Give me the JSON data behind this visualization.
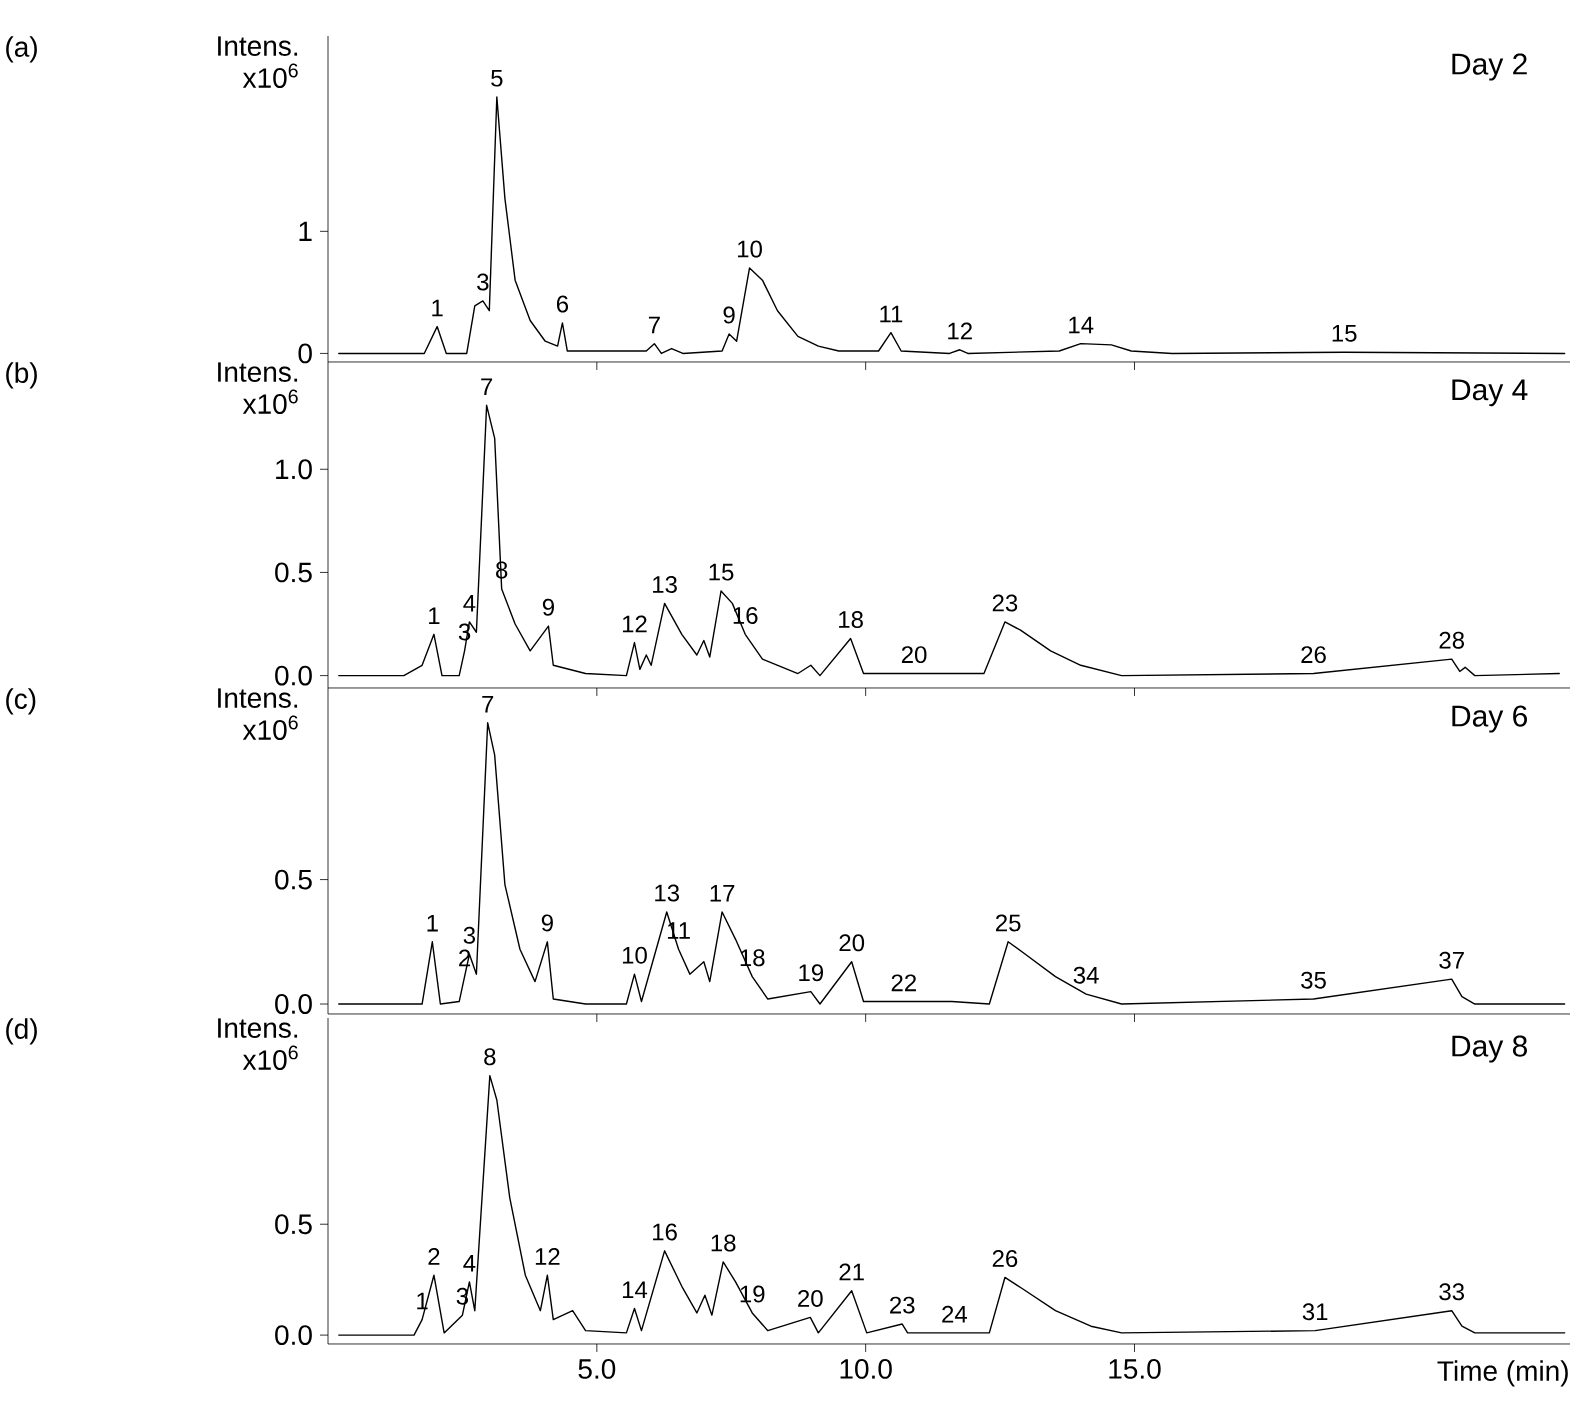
{
  "chart_data": [
    {
      "type": "line",
      "title": "Day 2",
      "ylabel": "Intens. x10$^{6}$",
      "xlim": [
        0,
        23.1
      ],
      "ylim": [
        -0.07,
        2.6
      ],
      "tick_labels": "y",
      "xticks": [
        {
          "value": 5,
          "label": null
        },
        {
          "value": 10,
          "label": null
        },
        {
          "value": 15,
          "label": null
        }
      ],
      "yticks": [
        0,
        1
      ],
      "x": [
        0.2,
        1.79,
        2.03,
        2.2,
        2.58,
        2.73,
        2.88,
        3.0,
        3.14,
        3.29,
        3.48,
        3.76,
        4.04,
        4.27,
        4.36,
        4.45,
        5.92,
        6.07,
        6.2,
        6.39,
        6.6,
        7.33,
        7.46,
        7.6,
        7.84,
        8.08,
        8.36,
        8.74,
        9.12,
        9.5,
        10.24,
        10.47,
        10.66,
        11.56,
        11.75,
        11.9,
        13.6,
        14.0,
        14.57,
        14.94,
        15.7,
        18.9,
        23.0
      ],
      "series": [
        {
          "color": "#000000",
          "values": [
            0,
            0,
            0.22,
            0,
            0,
            0.39,
            0.43,
            0.35,
            2.1,
            1.27,
            0.6,
            0.27,
            0.1,
            0.06,
            0.25,
            0.02,
            0.02,
            0.08,
            0,
            0.04,
            0,
            0.02,
            0.16,
            0.1,
            0.7,
            0.6,
            0.35,
            0.14,
            0.06,
            0.02,
            0.02,
            0.17,
            0.02,
            0,
            0.03,
            0,
            0.02,
            0.08,
            0.07,
            0.02,
            0,
            0.01,
            0
          ]
        }
      ],
      "annotations": [
        "(a)",
        {
          "text": "1",
          "x": 2.03,
          "y": 0.22
        },
        {
          "text": "3",
          "x": 2.88,
          "y": 0.43
        },
        {
          "text": "5",
          "x": 3.14,
          "y": 2.1
        },
        {
          "text": "6",
          "x": 4.36,
          "y": 0.25
        },
        {
          "text": "7",
          "x": 6.07,
          "y": 0.08
        },
        {
          "text": "9",
          "x": 7.46,
          "y": 0.16
        },
        {
          "text": "10",
          "x": 7.84,
          "y": 0.7
        },
        {
          "text": "11",
          "x": 10.47,
          "y": 0.17
        },
        {
          "text": "12",
          "x": 11.75,
          "y": 0.03
        },
        {
          "text": "14",
          "x": 14.0,
          "y": 0.08
        },
        {
          "text": "15",
          "x": 18.9,
          "y": 0.01
        }
      ]
    },
    {
      "type": "line",
      "title": "Day 4",
      "ylabel": "Intens. x10$^{6}$",
      "xlim": [
        0,
        23.1
      ],
      "ylim": [
        -0.06,
        1.52
      ],
      "tick_labels": "y",
      "xticks": [
        {
          "value": 5,
          "label": null
        },
        {
          "value": 10,
          "label": null
        },
        {
          "value": 15,
          "label": null
        }
      ],
      "yticks": [
        {
          "value": 0,
          "label": "0.0"
        },
        {
          "value": 0.5,
          "label": "0.5"
        },
        {
          "value": 1,
          "label": "1.0"
        }
      ],
      "x": [
        0.2,
        1.41,
        1.75,
        1.97,
        2.12,
        2.44,
        2.54,
        2.63,
        2.76,
        2.95,
        3.1,
        3.23,
        3.48,
        3.76,
        4.1,
        4.19,
        4.79,
        5.55,
        5.7,
        5.8,
        5.92,
        6.01,
        6.26,
        6.58,
        6.86,
        6.99,
        7.1,
        7.31,
        7.52,
        7.76,
        8.08,
        8.74,
        8.98,
        9.15,
        9.72,
        9.96,
        10.9,
        11.6,
        12.2,
        12.59,
        12.88,
        13.44,
        14.0,
        14.76,
        18.33,
        20.9,
        21.05,
        21.15,
        21.33,
        22.9
      ],
      "series": [
        {
          "color": "#000000",
          "values": [
            0,
            0,
            0.05,
            0.2,
            0,
            0,
            0.12,
            0.26,
            0.21,
            1.31,
            1.15,
            0.42,
            0.25,
            0.12,
            0.24,
            0.05,
            0.01,
            0,
            0.16,
            0.03,
            0.1,
            0.05,
            0.35,
            0.2,
            0.1,
            0.17,
            0.09,
            0.41,
            0.35,
            0.2,
            0.08,
            0.01,
            0.05,
            0,
            0.18,
            0.01,
            0.01,
            0.01,
            0.01,
            0.26,
            0.22,
            0.12,
            0.05,
            0,
            0.01,
            0.08,
            0.02,
            0.04,
            0,
            0.01
          ]
        }
      ],
      "annotations": [
        "(b)",
        {
          "text": "1",
          "x": 1.97,
          "y": 0.2
        },
        {
          "text": "3",
          "x": 2.54,
          "y": 0.12
        },
        {
          "text": "4",
          "x": 2.63,
          "y": 0.26
        },
        {
          "text": "7",
          "x": 2.95,
          "y": 1.31
        },
        {
          "text": "8",
          "x": 3.23,
          "y": 0.42
        },
        {
          "text": "9",
          "x": 4.1,
          "y": 0.24
        },
        {
          "text": "12",
          "x": 5.7,
          "y": 0.16
        },
        {
          "text": "13",
          "x": 6.26,
          "y": 0.35
        },
        {
          "text": "15",
          "x": 7.31,
          "y": 0.41
        },
        {
          "text": "16",
          "x": 7.76,
          "y": 0.2
        },
        {
          "text": "18",
          "x": 9.72,
          "y": 0.18
        },
        {
          "text": "20",
          "x": 10.9,
          "y": 0.01
        },
        {
          "text": "23",
          "x": 12.59,
          "y": 0.26
        },
        {
          "text": "26",
          "x": 18.33,
          "y": 0.01
        },
        {
          "text": "28",
          "x": 20.9,
          "y": 0.08
        }
      ]
    },
    {
      "type": "line",
      "title": "Day 6",
      "ylabel": "Intens. x10$^{6}$",
      "xlim": [
        0,
        23.1
      ],
      "ylim": [
        -0.04,
        1.27
      ],
      "tick_labels": "y",
      "xticks": [
        {
          "value": 5,
          "label": null
        },
        {
          "value": 10,
          "label": null
        },
        {
          "value": 15,
          "label": null
        }
      ],
      "yticks": [
        {
          "value": 0,
          "label": "0.0"
        },
        {
          "value": 0.5,
          "label": "0.5"
        }
      ],
      "x": [
        0.2,
        1.75,
        1.94,
        2.09,
        2.44,
        2.54,
        2.63,
        2.76,
        2.97,
        3.1,
        3.29,
        3.57,
        3.85,
        4.08,
        4.19,
        4.79,
        5.55,
        5.7,
        5.83,
        6.3,
        6.52,
        6.73,
        6.99,
        7.1,
        7.33,
        7.58,
        7.89,
        8.18,
        8.98,
        9.15,
        9.74,
        9.96,
        10.71,
        11.6,
        12.3,
        12.65,
        12.97,
        13.53,
        14.1,
        14.76,
        18.33,
        20.9,
        21.09,
        21.33,
        23.0
      ],
      "series": [
        {
          "color": "#000000",
          "values": [
            0,
            0,
            0.25,
            0,
            0.01,
            0.11,
            0.2,
            0.12,
            1.13,
            1.0,
            0.48,
            0.22,
            0.09,
            0.25,
            0.02,
            0,
            0,
            0.12,
            0.01,
            0.37,
            0.22,
            0.12,
            0.17,
            0.09,
            0.37,
            0.26,
            0.11,
            0.02,
            0.05,
            0,
            0.17,
            0.01,
            0.01,
            0.01,
            0,
            0.25,
            0.2,
            0.11,
            0.04,
            0,
            0.02,
            0.1,
            0.03,
            0,
            0
          ]
        }
      ],
      "annotations": [
        "(c)",
        {
          "text": "1",
          "x": 1.94,
          "y": 0.25
        },
        {
          "text": "2",
          "x": 2.54,
          "y": 0.11
        },
        {
          "text": "3",
          "x": 2.63,
          "y": 0.2
        },
        {
          "text": "7",
          "x": 2.97,
          "y": 1.13
        },
        {
          "text": "9",
          "x": 4.08,
          "y": 0.25
        },
        {
          "text": "10",
          "x": 5.7,
          "y": 0.12
        },
        {
          "text": "11",
          "x": 6.52,
          "y": 0.22
        },
        {
          "text": "13",
          "x": 6.3,
          "y": 0.37
        },
        {
          "text": "17",
          "x": 7.33,
          "y": 0.37
        },
        {
          "text": "18",
          "x": 7.89,
          "y": 0.11
        },
        {
          "text": "19",
          "x": 8.98,
          "y": 0.05
        },
        {
          "text": "20",
          "x": 9.74,
          "y": 0.17
        },
        {
          "text": "22",
          "x": 10.71,
          "y": 0.01
        },
        {
          "text": "25",
          "x": 12.65,
          "y": 0.25
        },
        {
          "text": "34",
          "x": 14.1,
          "y": 0.04
        },
        {
          "text": "35",
          "x": 18.33,
          "y": 0.02
        },
        {
          "text": "37",
          "x": 20.9,
          "y": 0.1
        }
      ]
    },
    {
      "type": "line",
      "title": "Day 8",
      "ylabel": "Intens. x10$^{6}$",
      "xlabel": "Time (min)",
      "xlim": [
        0,
        23.1
      ],
      "ylim": [
        -0.04,
        1.43
      ],
      "xticks": [
        {
          "value": 5,
          "label": "5.0"
        },
        {
          "value": 10,
          "label": "10.0"
        },
        {
          "value": 15,
          "label": "15.0"
        }
      ],
      "yticks": [
        {
          "value": 0,
          "label": "0.0"
        },
        {
          "value": 0.5,
          "label": "0.5"
        }
      ],
      "x": [
        0.2,
        1.6,
        1.75,
        1.97,
        2.16,
        2.5,
        2.63,
        2.73,
        3.01,
        3.14,
        3.38,
        3.67,
        3.95,
        4.08,
        4.19,
        4.55,
        4.79,
        5.55,
        5.7,
        5.83,
        6.26,
        6.58,
        6.86,
        7.01,
        7.14,
        7.35,
        7.58,
        7.89,
        8.18,
        8.97,
        9.12,
        9.74,
        10.02,
        10.68,
        10.78,
        11.65,
        12.3,
        12.59,
        12.91,
        13.53,
        14.19,
        14.76,
        18.36,
        20.9,
        21.09,
        21.33,
        23.0
      ],
      "series": [
        {
          "color": "#000000",
          "values": [
            0,
            0,
            0.07,
            0.27,
            0.01,
            0.09,
            0.24,
            0.11,
            1.17,
            1.06,
            0.62,
            0.27,
            0.11,
            0.27,
            0.07,
            0.11,
            0.02,
            0.01,
            0.12,
            0.02,
            0.38,
            0.22,
            0.1,
            0.18,
            0.09,
            0.33,
            0.24,
            0.1,
            0.02,
            0.08,
            0.01,
            0.2,
            0.01,
            0.05,
            0.01,
            0.01,
            0.01,
            0.26,
            0.21,
            0.11,
            0.04,
            0.01,
            0.02,
            0.11,
            0.04,
            0.01,
            0.01
          ]
        }
      ],
      "annotations": [
        "(d)",
        {
          "text": "1",
          "x": 1.75,
          "y": 0.07
        },
        {
          "text": "2",
          "x": 1.97,
          "y": 0.27
        },
        {
          "text": "3",
          "x": 2.5,
          "y": 0.09
        },
        {
          "text": "4",
          "x": 2.63,
          "y": 0.24
        },
        {
          "text": "8",
          "x": 3.01,
          "y": 1.17
        },
        {
          "text": "12",
          "x": 4.08,
          "y": 0.27
        },
        {
          "text": "14",
          "x": 5.7,
          "y": 0.12
        },
        {
          "text": "16",
          "x": 6.26,
          "y": 0.38
        },
        {
          "text": "18",
          "x": 7.35,
          "y": 0.33
        },
        {
          "text": "19",
          "x": 7.89,
          "y": 0.1
        },
        {
          "text": "20",
          "x": 8.97,
          "y": 0.08
        },
        {
          "text": "21",
          "x": 9.74,
          "y": 0.2
        },
        {
          "text": "23",
          "x": 10.68,
          "y": 0.05
        },
        {
          "text": "24",
          "x": 11.65,
          "y": 0.01
        },
        {
          "text": "26",
          "x": 12.59,
          "y": 0.26
        },
        {
          "text": "31",
          "x": 18.36,
          "y": 0.02
        },
        {
          "text": "33",
          "x": 20.9,
          "y": 0.11
        }
      ]
    }
  ]
}
